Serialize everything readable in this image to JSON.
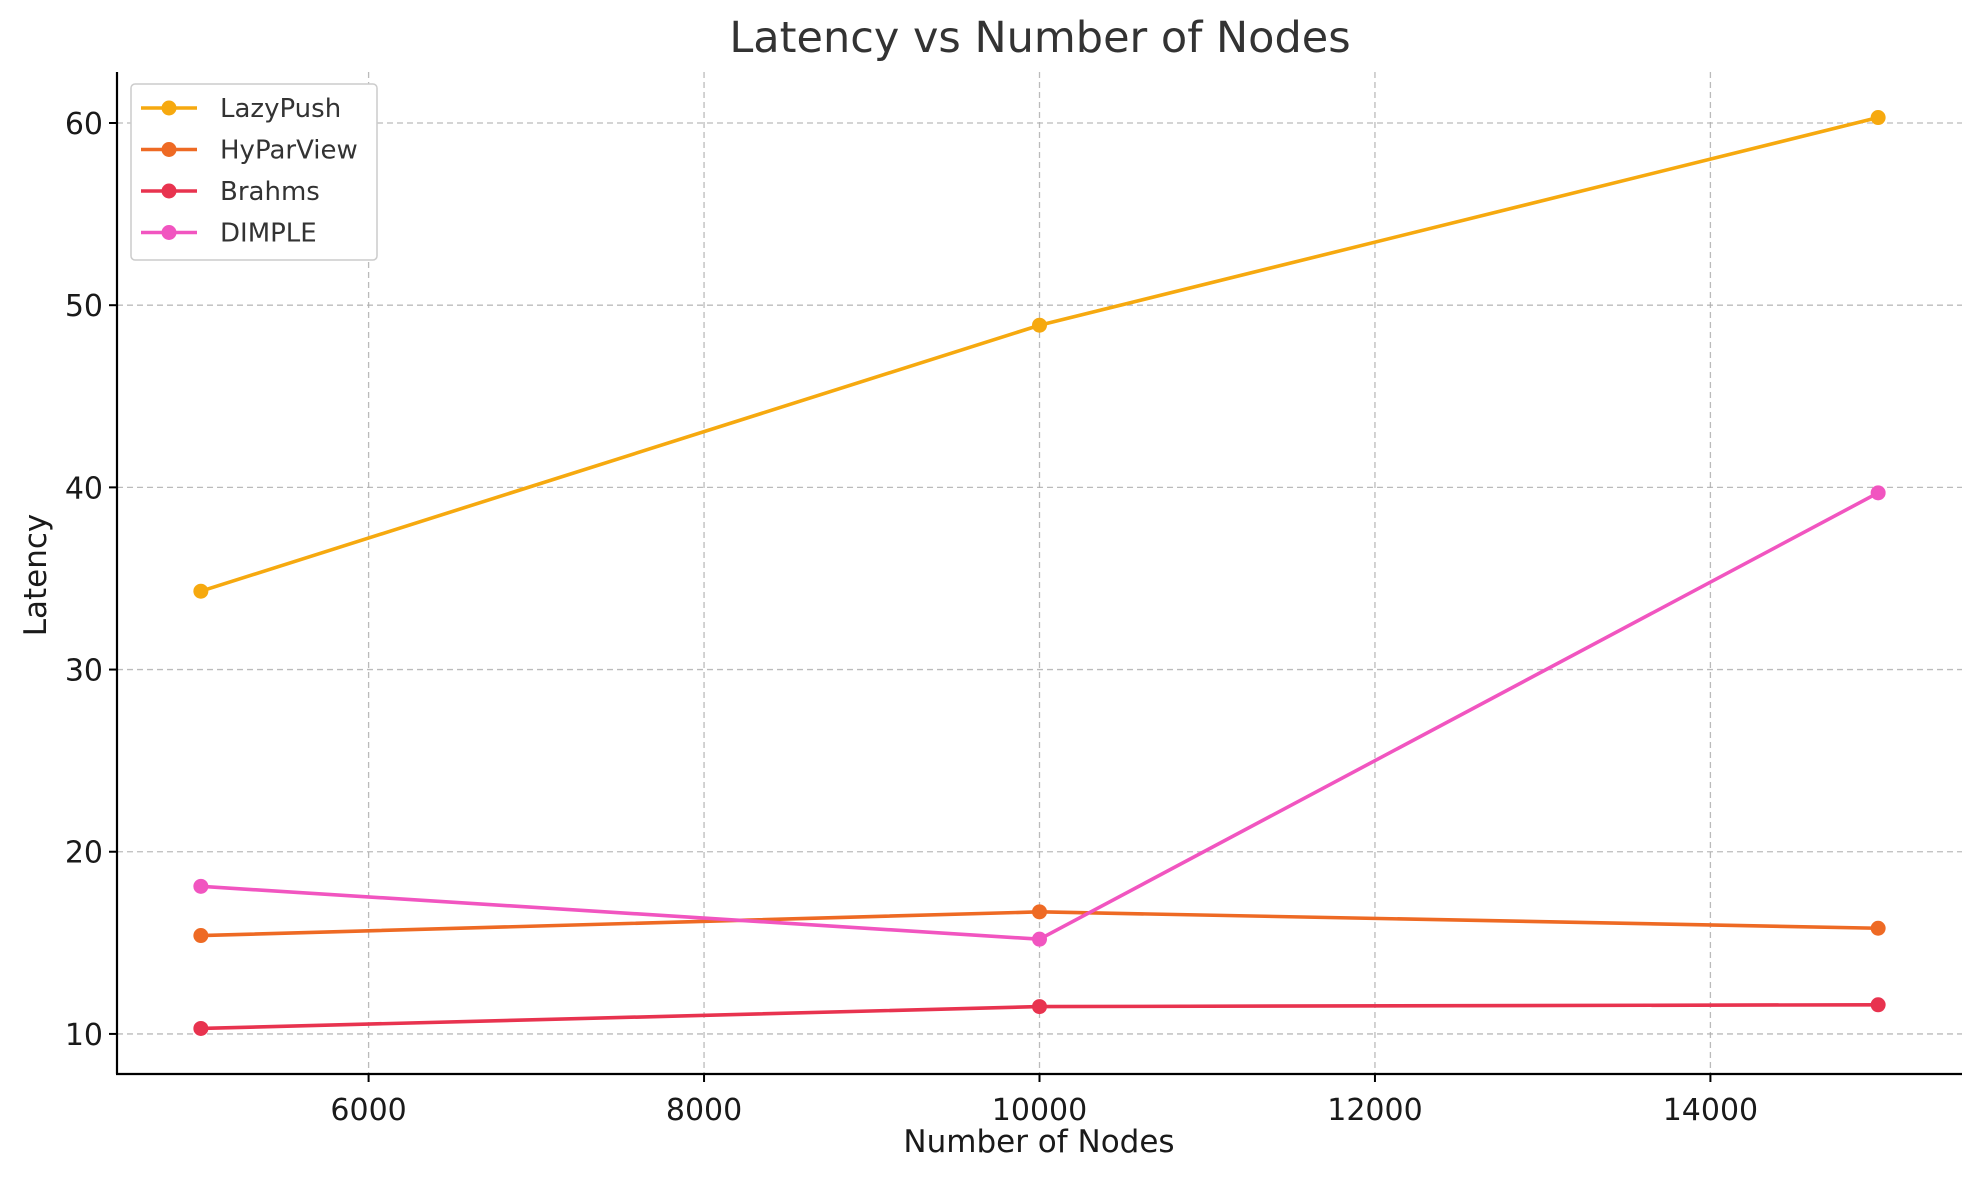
{
  "chart_data": {
    "type": "line",
    "title": "Latency vs Number of Nodes",
    "xlabel": "Number of Nodes",
    "ylabel": "Latency",
    "x": [
      5000,
      10000,
      15000
    ],
    "xlim": [
      4500,
      15500
    ],
    "ylim": [
      7.8,
      62.8
    ],
    "xticks": [
      6000,
      8000,
      10000,
      12000,
      14000
    ],
    "yticks": [
      10,
      20,
      30,
      40,
      50,
      60
    ],
    "grid": true,
    "legend_position": "top-left",
    "series": [
      {
        "name": "LazyPush",
        "color": "#f6a90f",
        "values": [
          34.3,
          48.9,
          60.3
        ]
      },
      {
        "name": "HyParView",
        "color": "#ee6a24",
        "values": [
          15.4,
          16.7,
          15.8
        ]
      },
      {
        "name": "Brahms",
        "color": "#e8334f",
        "values": [
          10.3,
          11.5,
          11.6
        ]
      },
      {
        "name": "DIMPLE",
        "color": "#f155c0",
        "values": [
          18.1,
          15.2,
          39.7
        ]
      }
    ]
  }
}
